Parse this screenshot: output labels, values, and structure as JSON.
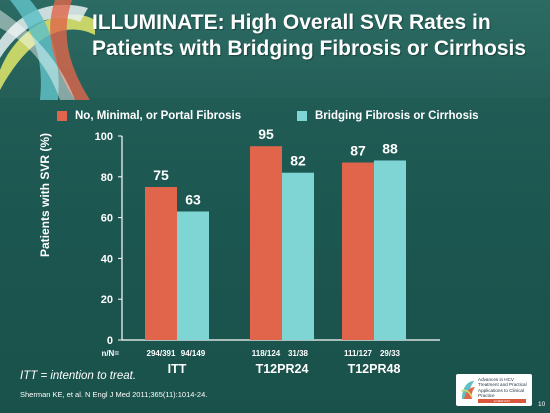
{
  "title": "ILLUMINATE: High Overall SVR Rates in Patients with Bridging Fibrosis or Cirrhosis",
  "colors": {
    "series1": "#e0654a",
    "series2": "#7fd4d4",
    "background": "#1f5a54",
    "text": "#ffffff"
  },
  "chart_data": {
    "type": "bar",
    "categories": [
      "ITT",
      "T12PR24",
      "T12PR48"
    ],
    "series": [
      {
        "name": "No, Minimal, or Portal Fibrosis",
        "values": [
          75,
          95,
          87
        ]
      },
      {
        "name": "Bridging Fibrosis or Cirrhosis",
        "values": [
          63,
          82,
          88
        ]
      }
    ],
    "n_label": "n/N=",
    "n_values": [
      [
        "294/391",
        "94/149"
      ],
      [
        "118/124",
        "31/38"
      ],
      [
        "111/127",
        "29/33"
      ]
    ],
    "ylabel": "Patients with SVR (%)",
    "ylim": [
      0,
      100
    ],
    "yticks": [
      0,
      20,
      40,
      60,
      80,
      100
    ],
    "legend_position": "top"
  },
  "footnote": "ITT = intention to treat.",
  "citation": "Sherman KE, et al. N Engl J Med 2011;365(11):1014-24.",
  "badge": {
    "text": "Advances in HCV Treatment and Practical Applications to Clinical Practice",
    "strip": "A NEW DAY"
  },
  "page_number": "10"
}
